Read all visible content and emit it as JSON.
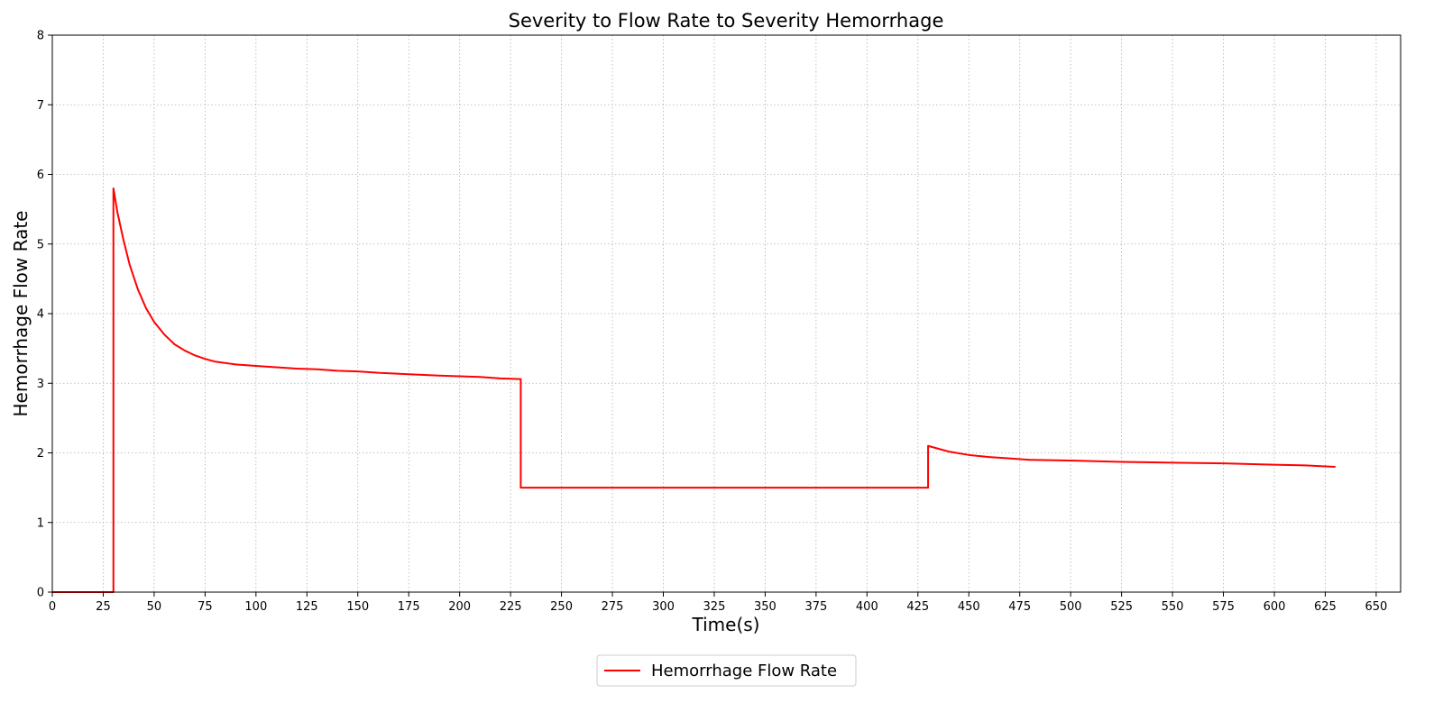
{
  "chart_data": {
    "type": "line",
    "title": "Severity to Flow Rate to Severity Hemorrhage",
    "xlabel": "Time(s)",
    "ylabel": "Hemorrhage Flow Rate",
    "xlim": [
      0,
      662
    ],
    "ylim": [
      0,
      8
    ],
    "xticks": [
      0,
      25,
      50,
      75,
      100,
      125,
      150,
      175,
      200,
      225,
      250,
      275,
      300,
      325,
      350,
      375,
      400,
      425,
      450,
      475,
      500,
      525,
      550,
      575,
      600,
      625,
      650
    ],
    "yticks": [
      0,
      1,
      2,
      3,
      4,
      5,
      6,
      7,
      8
    ],
    "grid": true,
    "legend_position": "bottom-center",
    "series": [
      {
        "name": "Hemorrhage Flow Rate",
        "color": "#ff0000",
        "x": [
          0,
          30,
          30,
          32,
          35,
          38,
          42,
          46,
          50,
          55,
          60,
          65,
          70,
          75,
          80,
          90,
          100,
          110,
          120,
          130,
          140,
          150,
          160,
          175,
          190,
          200,
          210,
          220,
          230,
          230,
          250,
          300,
          350,
          400,
          430,
          430,
          435,
          440,
          450,
          460,
          470,
          480,
          500,
          525,
          550,
          575,
          600,
          615,
          630
        ],
        "y": [
          0,
          0,
          5.8,
          5.45,
          5.05,
          4.7,
          4.35,
          4.08,
          3.88,
          3.7,
          3.56,
          3.47,
          3.4,
          3.35,
          3.31,
          3.27,
          3.25,
          3.23,
          3.21,
          3.2,
          3.18,
          3.17,
          3.15,
          3.13,
          3.11,
          3.1,
          3.09,
          3.07,
          3.06,
          1.5,
          1.5,
          1.5,
          1.5,
          1.5,
          1.5,
          2.1,
          2.06,
          2.02,
          1.97,
          1.94,
          1.92,
          1.9,
          1.89,
          1.87,
          1.86,
          1.85,
          1.83,
          1.82,
          1.8
        ]
      }
    ]
  }
}
